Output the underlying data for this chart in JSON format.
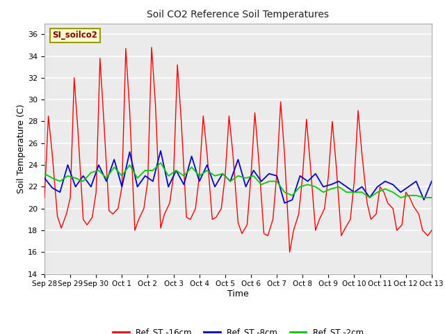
{
  "title": "Soil CO2 Reference Soil Temperatures",
  "xlabel": "Time",
  "ylabel": "Soil Temperature (C)",
  "ylim": [
    14,
    37
  ],
  "yticks": [
    14,
    16,
    18,
    20,
    22,
    24,
    26,
    28,
    30,
    32,
    34,
    36
  ],
  "bg_color": "#ffffff",
  "plot_bg_color": "#ebebeb",
  "legend_label": "SI_soilco2",
  "legend_box_color": "#ffffcc",
  "legend_text_color": "#800000",
  "series": [
    {
      "label": "Ref_ST -16cm",
      "color": "#ff0000"
    },
    {
      "label": "Ref_ST -8cm",
      "color": "#0000cc"
    },
    {
      "label": "Ref_ST -2cm",
      "color": "#00cc00"
    }
  ],
  "x_tick_labels": [
    "Sep 28",
    "Sep 29",
    "Sep 30",
    "Oct 1",
    "Oct 2",
    "Oct 3",
    "Oct 4",
    "Oct 5",
    "Oct 6",
    "Oct 7",
    "Oct 8",
    "Oct 9",
    "Oct 10",
    "Oct 11",
    "Oct 12",
    "Oct 13"
  ],
  "red_times": [
    0.0,
    0.15,
    0.3,
    0.5,
    0.65,
    0.85,
    1.0,
    1.15,
    1.3,
    1.5,
    1.65,
    1.85,
    2.0,
    2.15,
    2.3,
    2.5,
    2.65,
    2.85,
    3.0,
    3.15,
    3.3,
    3.5,
    3.65,
    3.85,
    4.0,
    4.15,
    4.3,
    4.5,
    4.65,
    4.85,
    5.0,
    5.15,
    5.3,
    5.5,
    5.65,
    5.85,
    6.0,
    6.15,
    6.3,
    6.5,
    6.65,
    6.85,
    7.0,
    7.15,
    7.3,
    7.5,
    7.65,
    7.85,
    8.0,
    8.15,
    8.3,
    8.5,
    8.65,
    8.85,
    9.0,
    9.15,
    9.3,
    9.5,
    9.65,
    9.85,
    10.0,
    10.15,
    10.3,
    10.5,
    10.65,
    10.85,
    11.0,
    11.15,
    11.3,
    11.5,
    11.65,
    11.85,
    12.0,
    12.15,
    12.3,
    12.5,
    12.65,
    12.85,
    13.0,
    13.15,
    13.3,
    13.5,
    13.65,
    13.85,
    14.0,
    14.15,
    14.3,
    14.5,
    14.65,
    14.85,
    15.0
  ],
  "red_values": [
    21.0,
    28.5,
    25.0,
    19.3,
    18.2,
    19.5,
    21.0,
    32.0,
    27.0,
    19.0,
    18.5,
    19.2,
    21.5,
    33.8,
    28.0,
    19.8,
    19.5,
    20.0,
    22.0,
    34.7,
    29.0,
    18.0,
    19.0,
    20.0,
    22.5,
    34.8,
    29.5,
    18.2,
    19.5,
    20.5,
    23.0,
    33.2,
    28.0,
    19.2,
    19.0,
    20.0,
    23.0,
    28.5,
    25.0,
    19.0,
    19.2,
    20.0,
    23.0,
    28.5,
    25.0,
    18.7,
    17.7,
    18.5,
    23.0,
    28.8,
    24.5,
    17.7,
    17.5,
    19.0,
    23.2,
    29.8,
    25.0,
    16.0,
    18.0,
    19.5,
    23.0,
    28.2,
    24.0,
    18.0,
    19.0,
    20.0,
    23.0,
    28.0,
    24.0,
    17.5,
    18.2,
    19.0,
    22.5,
    29.0,
    25.0,
    20.5,
    19.0,
    19.5,
    22.0,
    21.5,
    20.5,
    20.0,
    18.0,
    18.5,
    21.5,
    21.0,
    20.2,
    19.5,
    18.0,
    17.5,
    18.0
  ],
  "blue_times": [
    0.0,
    0.3,
    0.6,
    0.9,
    1.2,
    1.5,
    1.8,
    2.1,
    2.4,
    2.7,
    3.0,
    3.3,
    3.6,
    3.9,
    4.2,
    4.5,
    4.8,
    5.1,
    5.4,
    5.7,
    6.0,
    6.3,
    6.6,
    6.9,
    7.2,
    7.5,
    7.8,
    8.1,
    8.4,
    8.7,
    9.0,
    9.3,
    9.6,
    9.9,
    10.2,
    10.5,
    10.8,
    11.1,
    11.4,
    11.7,
    12.0,
    12.3,
    12.6,
    12.9,
    13.2,
    13.5,
    13.8,
    14.1,
    14.4,
    14.7,
    15.0
  ],
  "blue_values": [
    22.8,
    21.9,
    21.5,
    24.0,
    22.0,
    23.0,
    22.0,
    24.0,
    22.5,
    24.5,
    22.0,
    25.2,
    22.0,
    23.0,
    22.5,
    25.3,
    22.0,
    23.5,
    22.2,
    24.8,
    22.5,
    24.0,
    22.0,
    23.2,
    22.5,
    24.5,
    22.0,
    23.5,
    22.5,
    23.2,
    23.0,
    20.5,
    20.8,
    23.0,
    22.5,
    23.2,
    22.0,
    22.2,
    22.5,
    22.0,
    21.5,
    22.0,
    21.0,
    22.0,
    22.5,
    22.2,
    21.5,
    22.0,
    22.5,
    20.8,
    22.5
  ],
  "green_times": [
    0.0,
    0.3,
    0.6,
    0.9,
    1.2,
    1.5,
    1.8,
    2.1,
    2.4,
    2.7,
    3.0,
    3.3,
    3.6,
    3.9,
    4.2,
    4.5,
    4.8,
    5.1,
    5.4,
    5.7,
    6.0,
    6.3,
    6.6,
    6.9,
    7.2,
    7.5,
    7.8,
    8.1,
    8.4,
    8.7,
    9.0,
    9.3,
    9.6,
    9.9,
    10.2,
    10.5,
    10.8,
    11.1,
    11.4,
    11.7,
    12.0,
    12.3,
    12.6,
    12.9,
    13.2,
    13.5,
    13.8,
    14.1,
    14.4,
    14.7,
    15.0
  ],
  "green_values": [
    23.2,
    22.8,
    22.5,
    23.0,
    22.8,
    22.5,
    23.3,
    23.5,
    22.8,
    23.8,
    23.0,
    24.0,
    22.8,
    23.5,
    23.5,
    24.2,
    23.0,
    23.5,
    23.0,
    23.8,
    23.0,
    23.5,
    23.0,
    23.2,
    22.5,
    23.0,
    22.8,
    23.0,
    22.2,
    22.5,
    22.5,
    21.5,
    21.2,
    22.0,
    22.2,
    22.0,
    21.5,
    21.8,
    22.0,
    21.5,
    21.5,
    21.5,
    21.0,
    21.5,
    21.8,
    21.5,
    21.0,
    21.2,
    21.2,
    21.0,
    21.0
  ]
}
